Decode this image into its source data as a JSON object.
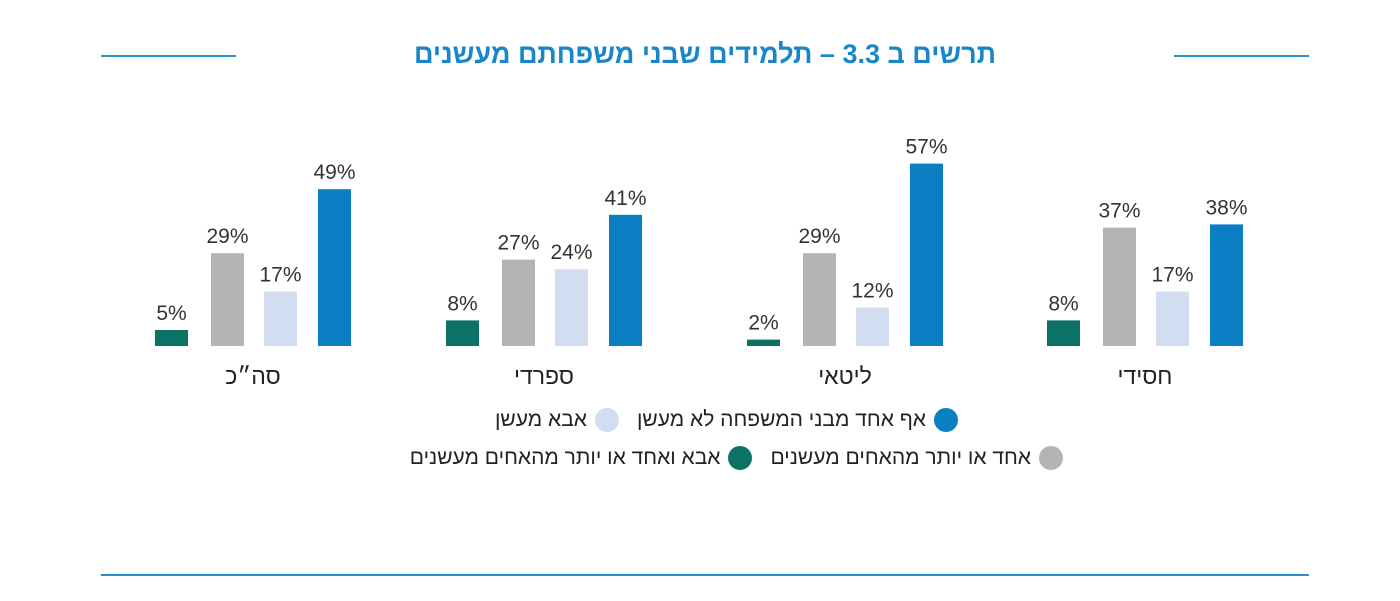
{
  "chart_data": {
    "type": "bar",
    "title": "תרשים ב 3.3 – תלמידים שבני משפחתם מעשנים",
    "categories": [
      "חסידי",
      "ליטאי",
      "ספרדי",
      "סה״כ"
    ],
    "series": [
      {
        "name": "אף אחד מבני המשפחה לא מעשן",
        "color": "#0a7fc4",
        "values": [
          38,
          57,
          41,
          49
        ]
      },
      {
        "name": "אבא מעשן",
        "color": "#d2ddf2",
        "values": [
          17,
          12,
          24,
          17
        ]
      },
      {
        "name": "אחד או יותר מהאחים מעשנים",
        "color": "#b5b3b3",
        "values": [
          37,
          29,
          27,
          29
        ]
      },
      {
        "name": "אבא ואחד או יותר מהאחים מעשנים",
        "color": "#0b7265",
        "values": [
          8,
          2,
          8,
          5
        ]
      }
    ],
    "value_suffix": "%",
    "xlabel": "",
    "ylabel": "",
    "ylim": [
      0,
      60
    ],
    "grid": false,
    "axes": false,
    "legend_position": "bottom"
  },
  "colors": {
    "accent_rule": "#2a8fd0",
    "title": "#1a86c8"
  }
}
